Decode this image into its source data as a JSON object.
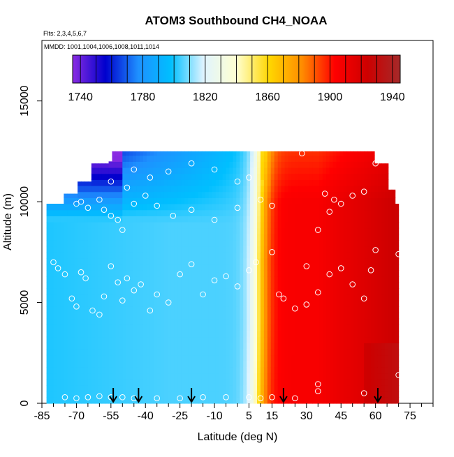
{
  "chart_data": {
    "type": "heatmap",
    "title": "ATOM3 Southbound CH4_NOAA",
    "flights_label": "Flts: 2,3,4,5,6,7",
    "dates_label": "MMDD: 1001,1004,1006,1008,1011,1014",
    "xlabel": "Latitude (deg N)",
    "ylabel": "Altitude (m)",
    "xlim": [
      -85,
      85
    ],
    "ylim": [
      0,
      18000
    ],
    "x_ticks": [
      -85,
      -70,
      -55,
      -40,
      -25,
      -10,
      5,
      15,
      30,
      45,
      60,
      75
    ],
    "x_tick_labels": [
      "-85",
      "-70",
      "-55",
      "-40",
      "-25",
      "-10",
      "5",
      "15",
      "30",
      "45",
      "60",
      "75"
    ],
    "y_ticks": [
      0,
      5000,
      10000,
      15000
    ],
    "y_tick_labels": [
      "0",
      "5000",
      "10000",
      "15000"
    ],
    "colorbar": {
      "min": 1735,
      "max": 1945,
      "ticks": [
        1740,
        1780,
        1820,
        1860,
        1900,
        1940
      ],
      "tick_labels": [
        "1740",
        "1780",
        "1820",
        "1860",
        "1900",
        "1940"
      ],
      "colors": [
        "#8a2be2",
        "#0000cd",
        "#1e90ff",
        "#00bfff",
        "#e0f4ff",
        "#ffffd0",
        "#ffd700",
        "#ff8c00",
        "#ff0000",
        "#cd0000",
        "#a52a2a"
      ]
    },
    "field_extent": {
      "lat_min": -83,
      "lat_max": 70,
      "alt_min": 0,
      "alt_max": 12500
    },
    "arrow_latitudes": [
      -54,
      -43,
      -20,
      20,
      61
    ],
    "sample_points": [
      [
        -80,
        7000
      ],
      [
        -78,
        6700
      ],
      [
        -75,
        6400
      ],
      [
        -72,
        5200
      ],
      [
        -70,
        4800
      ],
      [
        -68,
        6500
      ],
      [
        -66,
        6200
      ],
      [
        -63,
        4600
      ],
      [
        -60,
        4400
      ],
      [
        -58,
        5300
      ],
      [
        -55,
        6800
      ],
      [
        -52,
        6000
      ],
      [
        -50,
        5100
      ],
      [
        -48,
        6200
      ],
      [
        -45,
        5600
      ],
      [
        -42,
        5900
      ],
      [
        -38,
        4600
      ],
      [
        -35,
        5400
      ],
      [
        -30,
        5000
      ],
      [
        -25,
        6400
      ],
      [
        -20,
        6900
      ],
      [
        -15,
        5400
      ],
      [
        -10,
        6100
      ],
      [
        -5,
        6300
      ],
      [
        0,
        5800
      ],
      [
        5,
        6600
      ],
      [
        8,
        7000
      ],
      [
        -70,
        9900
      ],
      [
        -68,
        10000
      ],
      [
        -65,
        9700
      ],
      [
        -60,
        10100
      ],
      [
        -58,
        9600
      ],
      [
        -55,
        9300
      ],
      [
        -52,
        9100
      ],
      [
        -50,
        8600
      ],
      [
        -45,
        9900
      ],
      [
        -40,
        10300
      ],
      [
        -35,
        9800
      ],
      [
        -28,
        9300
      ],
      [
        -20,
        9600
      ],
      [
        -10,
        9100
      ],
      [
        0,
        9700
      ],
      [
        10,
        10100
      ],
      [
        15,
        9800
      ],
      [
        -55,
        11000
      ],
      [
        -48,
        10700
      ],
      [
        -45,
        11600
      ],
      [
        -38,
        11200
      ],
      [
        -30,
        11500
      ],
      [
        -20,
        11900
      ],
      [
        -10,
        11600
      ],
      [
        0,
        11000
      ],
      [
        5,
        11200
      ],
      [
        28,
        12400
      ],
      [
        15,
        7500
      ],
      [
        18,
        5400
      ],
      [
        20,
        5200
      ],
      [
        25,
        4700
      ],
      [
        30,
        4900
      ],
      [
        35,
        5500
      ],
      [
        40,
        6400
      ],
      [
        45,
        6700
      ],
      [
        50,
        5900
      ],
      [
        55,
        5200
      ],
      [
        58,
        6600
      ],
      [
        60,
        7600
      ],
      [
        70,
        7400
      ],
      [
        30,
        6800
      ],
      [
        35,
        8600
      ],
      [
        40,
        9500
      ],
      [
        45,
        9900
      ],
      [
        50,
        10300
      ],
      [
        55,
        10500
      ],
      [
        60,
        11900
      ],
      [
        38,
        10400
      ],
      [
        42,
        10100
      ],
      [
        -75,
        300
      ],
      [
        -70,
        250
      ],
      [
        -65,
        300
      ],
      [
        -60,
        350
      ],
      [
        -55,
        300
      ],
      [
        -50,
        300
      ],
      [
        -45,
        250
      ],
      [
        -35,
        250
      ],
      [
        -25,
        250
      ],
      [
        -15,
        300
      ],
      [
        -5,
        300
      ],
      [
        5,
        300
      ],
      [
        10,
        250
      ],
      [
        15,
        300
      ],
      [
        25,
        250
      ],
      [
        35,
        600
      ],
      [
        35,
        950
      ],
      [
        55,
        500
      ],
      [
        70,
        1400
      ]
    ]
  }
}
